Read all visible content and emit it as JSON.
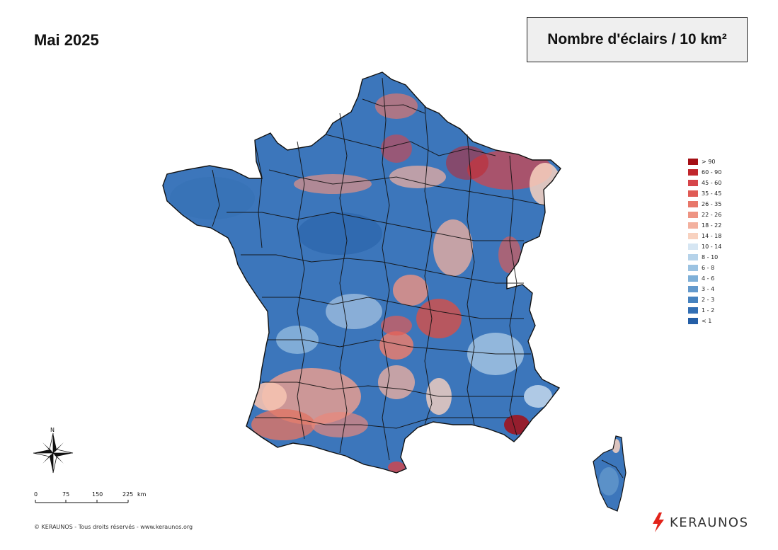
{
  "header": {
    "title": "Mai 2025",
    "legend_title": "Nombre d'éclairs / 10 km²"
  },
  "legend": {
    "items": [
      {
        "label": "> 90",
        "color": "#a50f15"
      },
      {
        "label": "60 - 90",
        "color": "#c1272d"
      },
      {
        "label": "45 - 60",
        "color": "#d6454a"
      },
      {
        "label": "35 - 45",
        "color": "#e05b55"
      },
      {
        "label": "26 - 35",
        "color": "#e8776a"
      },
      {
        "label": "22 - 26",
        "color": "#ee9483"
      },
      {
        "label": "18 - 22",
        "color": "#f3b19f"
      },
      {
        "label": "14 - 18",
        "color": "#f8d2c0"
      },
      {
        "label": "10 - 14",
        "color": "#d6e6f3"
      },
      {
        "label": "8 - 10",
        "color": "#b6d3ea"
      },
      {
        "label": "6 - 8",
        "color": "#9cc3e2"
      },
      {
        "label": "4 - 6",
        "color": "#7fb0d8"
      },
      {
        "label": "3 - 4",
        "color": "#6399cc"
      },
      {
        "label": "2 - 3",
        "color": "#4682bf"
      },
      {
        "label": "1 - 2",
        "color": "#336fb4"
      },
      {
        "label": "< 1",
        "color": "#245ea6"
      }
    ]
  },
  "compass": {
    "north_label": "N"
  },
  "scale": {
    "ticks": [
      "0",
      "75",
      "150",
      "225"
    ],
    "unit": "km"
  },
  "footer": {
    "copyright": "© KERAUNOS - Tous droits réservés - www.keraunos.org",
    "brand": "KERAUNOS",
    "brand_color": "#e2231a"
  },
  "colors": {
    "land_base": "#3c76bb",
    "border": "#111111"
  }
}
